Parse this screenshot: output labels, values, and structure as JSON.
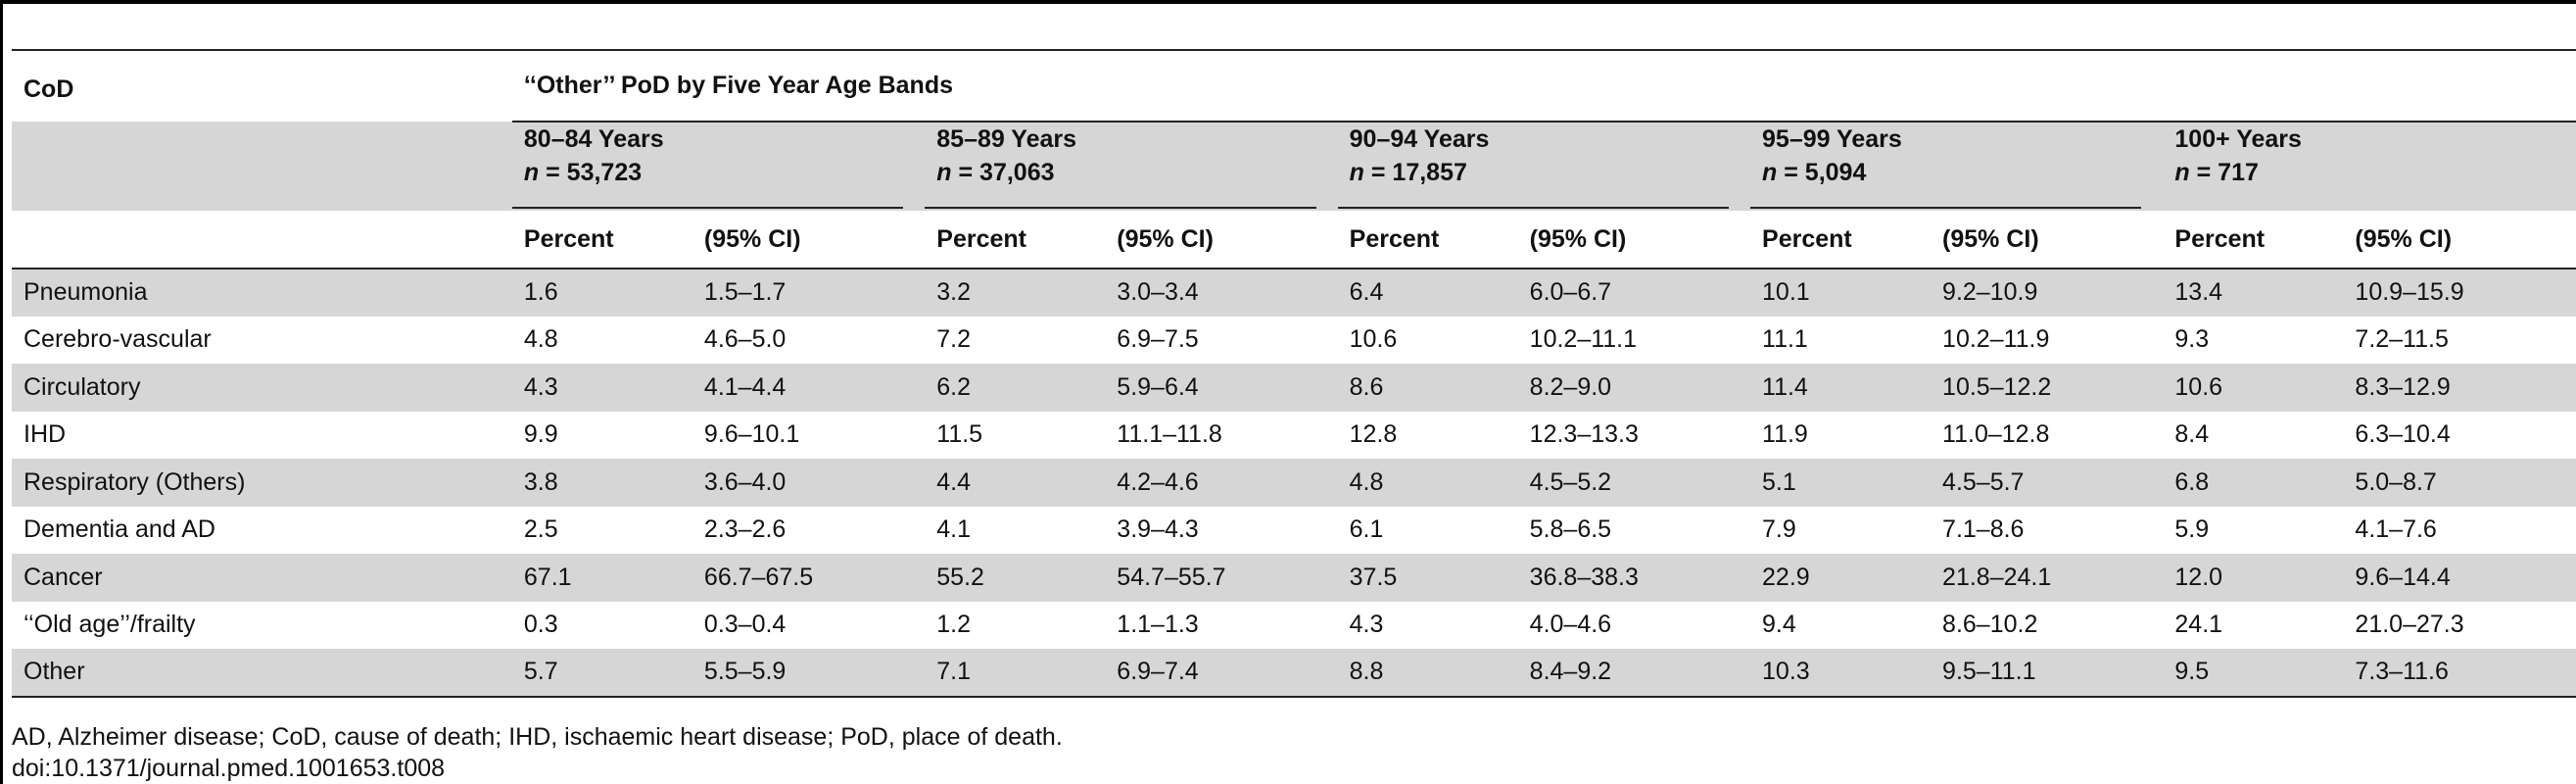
{
  "header": {
    "cod_label": "CoD",
    "spanner_label": "‘‘Other’’ PoD by Five Year Age Bands",
    "bands": [
      {
        "label": "80–84 Years",
        "n_prefix": "n",
        "n_value": " = 53,723"
      },
      {
        "label": "85–89 Years",
        "n_prefix": "n",
        "n_value": " = 37,063"
      },
      {
        "label": "90–94 Years",
        "n_prefix": "n",
        "n_value": " = 17,857"
      },
      {
        "label": "95–99 Years",
        "n_prefix": "n",
        "n_value": " = 5,094"
      },
      {
        "label": "100+ Years",
        "n_prefix": "n",
        "n_value": " = 717"
      }
    ],
    "percent_label": "Percent",
    "ci_label": "(95% CI)"
  },
  "rows": [
    {
      "cod": "Pneumonia",
      "cells": [
        "1.6",
        "1.5–1.7",
        "3.2",
        "3.0–3.4",
        "6.4",
        "6.0–6.7",
        "10.1",
        "9.2–10.9",
        "13.4",
        "10.9–15.9"
      ]
    },
    {
      "cod": "Cerebro-vascular",
      "cells": [
        "4.8",
        "4.6–5.0",
        "7.2",
        "6.9–7.5",
        "10.6",
        "10.2–11.1",
        "11.1",
        "10.2–11.9",
        "9.3",
        "7.2–11.5"
      ]
    },
    {
      "cod": "Circulatory",
      "cells": [
        "4.3",
        "4.1–4.4",
        "6.2",
        "5.9–6.4",
        "8.6",
        "8.2–9.0",
        "11.4",
        "10.5–12.2",
        "10.6",
        "8.3–12.9"
      ]
    },
    {
      "cod": "IHD",
      "cells": [
        "9.9",
        "9.6–10.1",
        "11.5",
        "11.1–11.8",
        "12.8",
        "12.3–13.3",
        "11.9",
        "11.0–12.8",
        "8.4",
        "6.3–10.4"
      ]
    },
    {
      "cod": "Respiratory (Others)",
      "cells": [
        "3.8",
        "3.6–4.0",
        "4.4",
        "4.2–4.6",
        "4.8",
        "4.5–5.2",
        "5.1",
        "4.5–5.7",
        "6.8",
        "5.0–8.7"
      ]
    },
    {
      "cod": "Dementia and AD",
      "cells": [
        "2.5",
        "2.3–2.6",
        "4.1",
        "3.9–4.3",
        "6.1",
        "5.8–6.5",
        "7.9",
        "7.1–8.6",
        "5.9",
        "4.1–7.6"
      ]
    },
    {
      "cod": "Cancer",
      "cells": [
        "67.1",
        "66.7–67.5",
        "55.2",
        "54.7–55.7",
        "37.5",
        "36.8–38.3",
        "22.9",
        "21.8–24.1",
        "12.0",
        "9.6–14.4"
      ]
    },
    {
      "cod": "‘‘Old age’’/frailty",
      "cells": [
        "0.3",
        "0.3–0.4",
        "1.2",
        "1.1–1.3",
        "4.3",
        "4.0–4.6",
        "9.4",
        "8.6–10.2",
        "24.1",
        "21.0–27.3"
      ]
    },
    {
      "cod": "Other",
      "cells": [
        "5.7",
        "5.5–5.9",
        "7.1",
        "6.9–7.4",
        "8.8",
        "8.4–9.2",
        "10.3",
        "9.5–11.1",
        "9.5",
        "7.3–11.6"
      ]
    }
  ],
  "footnote": "AD, Alzheimer disease; CoD, cause of death; IHD, ischaemic heart disease; PoD, place of death.",
  "doi": "doi:10.1371/journal.pmed.1001653.t008"
}
